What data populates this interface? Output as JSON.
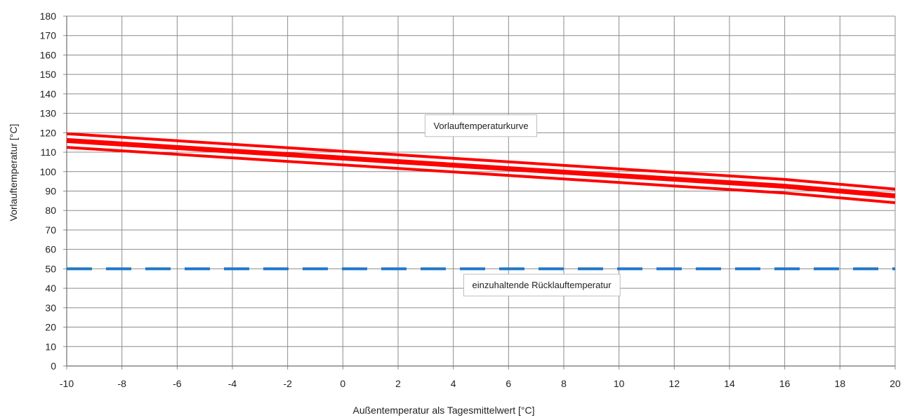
{
  "chart_data": {
    "type": "line",
    "title": "",
    "xlabel": "Außentemperatur  als Tagesmittelwert [°C]",
    "ylabel": "Vorlauftemperatur [°C]",
    "xlim": [
      -10,
      20
    ],
    "ylim": [
      0,
      180
    ],
    "x_ticks": [
      -10,
      -8,
      -6,
      -4,
      -2,
      0,
      2,
      4,
      6,
      8,
      10,
      12,
      14,
      16,
      18,
      20
    ],
    "y_ticks": [
      0,
      10,
      20,
      30,
      40,
      50,
      60,
      70,
      80,
      90,
      100,
      110,
      120,
      130,
      140,
      150,
      160,
      170,
      180
    ],
    "grid": true,
    "series": [
      {
        "color": "#ff0000",
        "style": "band-outline",
        "x": [
          -10,
          16,
          20
        ],
        "y": [
          119.5,
          96,
          91
        ]
      },
      {
        "color": "#ff0000",
        "style": "band-center",
        "x": [
          -10,
          16,
          20
        ],
        "y": [
          116,
          92.5,
          87.5
        ]
      },
      {
        "color": "#ff0000",
        "style": "band-outline",
        "x": [
          -10,
          16,
          20
        ],
        "y": [
          112.5,
          89,
          84
        ]
      },
      {
        "color": "#1f78c8",
        "style": "dashed",
        "x": [
          -10,
          20
        ],
        "y": [
          50,
          50
        ]
      }
    ],
    "annotations": [
      {
        "text": "Vorlauftemperaturkurve",
        "x": 5,
        "y": 122
      },
      {
        "text": "einzuhaltende Rücklauftemperatur",
        "x": 7.2,
        "y": 40
      }
    ]
  }
}
